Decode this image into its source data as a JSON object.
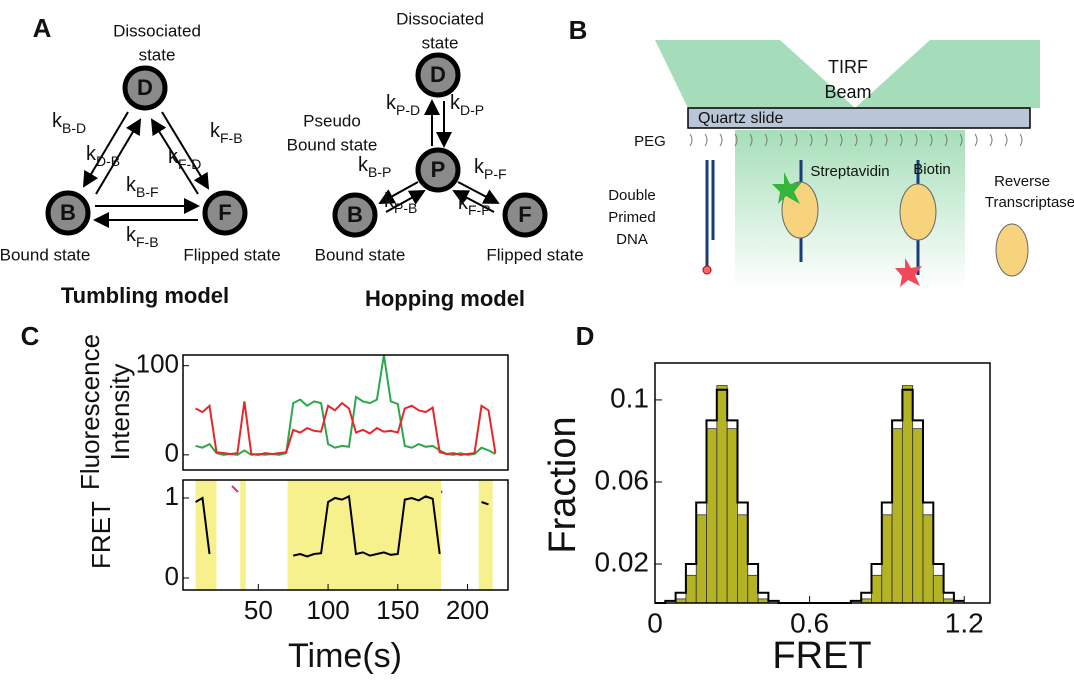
{
  "panel_labels": [
    "A",
    "B",
    "C",
    "D"
  ],
  "tumbling": {
    "title": "Tumbling model",
    "nodes": [
      "D",
      "B",
      "F"
    ],
    "captions": [
      "Dissociated",
      "state",
      "Bound state",
      "Flipped state"
    ],
    "rates": [
      {
        "k": "k",
        "sub": "B-D"
      },
      {
        "k": "k",
        "sub": "D-B"
      },
      {
        "k": "k",
        "sub": "F-B"
      },
      {
        "k": "k",
        "sub": "F-D"
      },
      {
        "k": "k",
        "sub": "B-F"
      },
      {
        "k": "k",
        "sub": "F-B"
      }
    ]
  },
  "hopping": {
    "title": "Hopping model",
    "nodes": [
      "D",
      "P",
      "B",
      "F"
    ],
    "captions": [
      "Dissociated",
      "state",
      "Pseudo",
      "Bound state",
      "Bound state",
      "Flipped state"
    ],
    "rates": [
      {
        "k": "k",
        "sub": "P-D"
      },
      {
        "k": "k",
        "sub": "D-P"
      },
      {
        "k": "k",
        "sub": "B-P"
      },
      {
        "k": "k",
        "sub": "P-B"
      },
      {
        "k": "k",
        "sub": "P-F"
      },
      {
        "k": "k",
        "sub": "F-P"
      }
    ]
  },
  "setup": {
    "beam": [
      "TIRF",
      "Beam"
    ],
    "labels": [
      "Quartz slide",
      "PEG",
      "Streptavidin",
      "Biotin",
      "Reverse",
      "Transcriptase",
      "Double",
      "Primed",
      "DNA"
    ]
  },
  "chart_data": [
    {
      "type": "line",
      "ylabel": [
        "Fluorescence",
        "Intensity"
      ],
      "x": [
        5,
        10,
        15,
        20,
        25,
        30,
        35,
        40,
        45,
        50,
        55,
        60,
        65,
        70,
        75,
        80,
        85,
        90,
        95,
        100,
        105,
        110,
        115,
        120,
        125,
        130,
        135,
        140,
        145,
        150,
        155,
        160,
        165,
        170,
        175,
        180,
        185,
        190,
        195,
        200,
        205,
        210,
        215,
        220
      ],
      "xlim": [
        -4,
        229
      ],
      "ylim": [
        -17,
        112
      ],
      "yticks": [
        0,
        100
      ],
      "series": [
        {
          "color": "#2ca84a",
          "values": [
            10,
            8,
            12,
            2,
            0,
            1,
            0,
            5,
            0,
            1,
            0,
            1,
            0,
            2,
            58,
            62,
            55,
            60,
            58,
            12,
            8,
            10,
            9,
            65,
            60,
            58,
            62,
            112,
            60,
            57,
            10,
            8,
            12,
            9,
            10,
            5,
            1,
            0,
            2,
            0,
            1,
            8,
            5,
            1
          ]
        },
        {
          "color": "#e8262a",
          "values": [
            52,
            48,
            55,
            3,
            2,
            1,
            2,
            60,
            1,
            0,
            2,
            1,
            2,
            3,
            28,
            25,
            30,
            27,
            26,
            55,
            50,
            58,
            52,
            25,
            28,
            24,
            30,
            26,
            27,
            25,
            52,
            55,
            50,
            48,
            53,
            3,
            1,
            2,
            0,
            1,
            2,
            55,
            50,
            2
          ]
        }
      ]
    },
    {
      "type": "line",
      "ylabel": "FRET",
      "xlabel": "Time(s)",
      "x": [
        5,
        10,
        15,
        20,
        25,
        30,
        35,
        40,
        45,
        50,
        55,
        60,
        65,
        70,
        75,
        80,
        85,
        90,
        95,
        100,
        105,
        110,
        115,
        120,
        125,
        130,
        135,
        140,
        145,
        150,
        155,
        160,
        165,
        170,
        175,
        180,
        185,
        190,
        195,
        200,
        205,
        210,
        215,
        220
      ],
      "xlim": [
        -4,
        229
      ],
      "xticks": [
        50,
        100,
        150,
        200
      ],
      "ylim": [
        -0.15,
        1.225
      ],
      "yticks": [
        0,
        1
      ],
      "shaded": [
        [
          5,
          20
        ],
        [
          37,
          41
        ],
        [
          71,
          181
        ],
        [
          208,
          218
        ]
      ],
      "shade_color": "#f6f18c",
      "series": [
        {
          "color": "#000000",
          "values": [
            0.95,
            1.0,
            0.3,
            null,
            null,
            null,
            null,
            0.95,
            null,
            null,
            null,
            null,
            null,
            null,
            0.28,
            0.3,
            0.27,
            0.3,
            0.31,
            0.95,
            1.0,
            0.98,
            1.02,
            0.3,
            0.32,
            0.28,
            0.3,
            0.32,
            0.29,
            0.3,
            0.98,
            1.0,
            0.97,
            1.02,
            0.99,
            0.3,
            null,
            null,
            null,
            null,
            null,
            0.95,
            0.92,
            null
          ]
        }
      ]
    },
    {
      "type": "histogram",
      "xlabel": "FRET",
      "ylabel": "Fraction",
      "bins": [
        0,
        0.04,
        0.08,
        0.12,
        0.16,
        0.2,
        0.24,
        0.28,
        0.32,
        0.36,
        0.4,
        0.44,
        0.48,
        0.52,
        0.56,
        0.6,
        0.64,
        0.68,
        0.72,
        0.76,
        0.8,
        0.84,
        0.88,
        0.92,
        0.96,
        1,
        1.04,
        1.08,
        1.12,
        1.16,
        1.2
      ],
      "xlim": [
        0,
        1.3
      ],
      "ylim": [
        0.001,
        0.118
      ],
      "xticks": [
        0,
        0.6,
        1.2
      ],
      "yticks": [
        0.02,
        0.06,
        0.1
      ],
      "series": [
        {
          "color": "#b3b324",
          "values": [
            0.001,
            0.001,
            0.003,
            0.0145,
            0.044,
            0.086,
            0.107,
            0.086,
            0.044,
            0.0145,
            0.003,
            0.001,
            0.001,
            0.001,
            0.001,
            0.001,
            0.001,
            0.001,
            0.001,
            0.001,
            0.003,
            0.0145,
            0.044,
            0.086,
            0.107,
            0.086,
            0.044,
            0.0145,
            0.003,
            0.001
          ]
        },
        {
          "color": "#000000",
          "values": [
            0.001,
            0.002,
            0.006,
            0.02,
            0.05,
            0.09,
            0.105,
            0.09,
            0.05,
            0.02,
            0.006,
            0.002,
            0.001,
            0.001,
            0.001,
            0.001,
            0.001,
            0.001,
            0.001,
            0.002,
            0.006,
            0.02,
            0.05,
            0.09,
            0.105,
            0.09,
            0.05,
            0.02,
            0.006,
            0.002
          ]
        }
      ]
    }
  ]
}
